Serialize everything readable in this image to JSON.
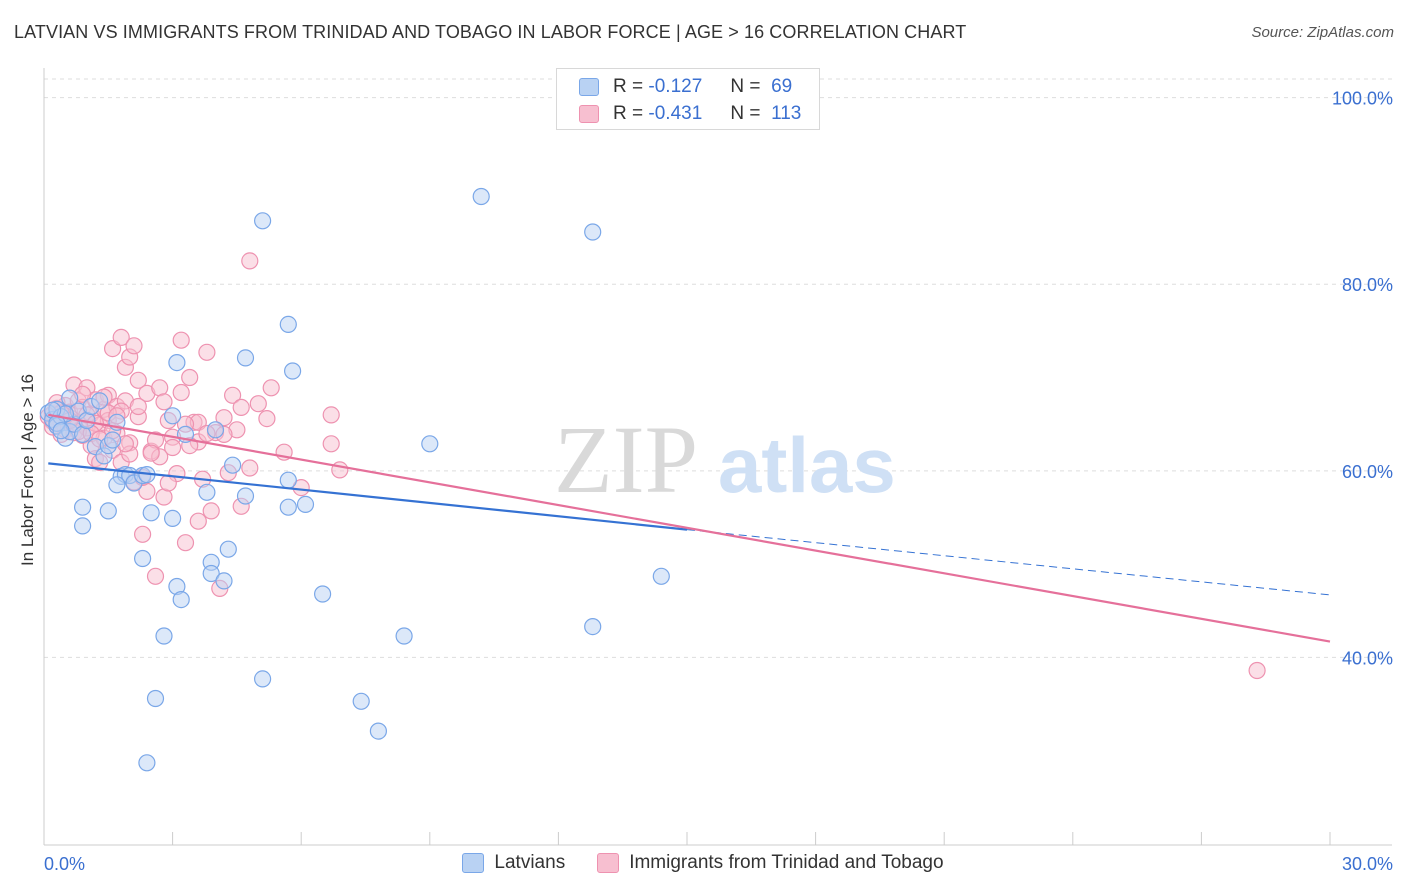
{
  "header": {
    "title": "LATVIAN VS IMMIGRANTS FROM TRINIDAD AND TOBAGO IN LABOR FORCE | AGE > 16 CORRELATION CHART",
    "source": "Source: ZipAtlas.com"
  },
  "legend": {
    "series1": {
      "r_label": "R =",
      "r_value": "-0.127",
      "n_label": "N =",
      "n_value": "69"
    },
    "series2": {
      "r_label": "R =",
      "r_value": "-0.431",
      "n_label": "N =",
      "n_value": "113"
    }
  },
  "watermark": {
    "zip": "ZIP",
    "atlas": "atlas"
  },
  "colors": {
    "blue_fill": "#b9d2f3",
    "blue_stroke": "#7aa7e8",
    "blue_line": "#3572d3",
    "pink_fill": "#f7bfd0",
    "pink_stroke": "#ee92b0",
    "pink_line": "#e5709a",
    "axis_text": "#3a6fd0",
    "grid": "#dddddd"
  },
  "chart_data": {
    "type": "scatter",
    "title": "LATVIAN VS IMMIGRANTS FROM TRINIDAD AND TOBAGO IN LABOR FORCE | AGE > 16 CORRELATION CHART",
    "xlabel": "",
    "ylabel": "In Labor Force | Age > 16",
    "xlim": [
      0,
      30
    ],
    "ylim": [
      20,
      102
    ],
    "x_tick_labels": [
      "0.0%",
      "30.0%"
    ],
    "y_ticks": [
      40,
      60,
      80,
      100
    ],
    "y_tick_labels": [
      "40.0%",
      "60.0%",
      "80.0%",
      "100.0%"
    ],
    "grid": true,
    "legend_position": "bottom",
    "series": [
      {
        "name": "Latvians",
        "color": "#b9d2f3",
        "r": -0.127,
        "n": 69,
        "trend": {
          "x0": 0.1,
          "y0": 60.8,
          "x1": 15.0,
          "y1": 53.7,
          "dash_x1": 30.0,
          "dash_y1": 46.7
        },
        "points": [
          [
            0.1,
            66.2
          ],
          [
            0.2,
            65.5
          ],
          [
            0.3,
            66.6
          ],
          [
            0.3,
            64.8
          ],
          [
            0.4,
            65.8
          ],
          [
            0.5,
            63.5
          ],
          [
            0.6,
            64.2
          ],
          [
            0.7,
            65.0
          ],
          [
            0.8,
            66.4
          ],
          [
            0.9,
            63.9
          ],
          [
            1.0,
            65.4
          ],
          [
            1.1,
            66.9
          ],
          [
            1.2,
            62.6
          ],
          [
            1.3,
            67.5
          ],
          [
            1.4,
            61.6
          ],
          [
            1.5,
            62.7
          ],
          [
            1.6,
            63.3
          ],
          [
            1.7,
            65.2
          ],
          [
            1.8,
            59.4
          ],
          [
            1.9,
            59.6
          ],
          [
            2.0,
            59.5
          ],
          [
            2.1,
            58.7
          ],
          [
            2.3,
            59.5
          ],
          [
            2.4,
            59.6
          ],
          [
            0.9,
            56.1
          ],
          [
            1.5,
            55.7
          ],
          [
            0.9,
            54.1
          ],
          [
            2.5,
            55.5
          ],
          [
            3.0,
            54.9
          ],
          [
            3.0,
            65.9
          ],
          [
            3.1,
            71.6
          ],
          [
            3.3,
            63.9
          ],
          [
            3.8,
            57.7
          ],
          [
            3.9,
            50.2
          ],
          [
            3.9,
            49.0
          ],
          [
            4.0,
            64.4
          ],
          [
            4.3,
            51.6
          ],
          [
            4.2,
            48.2
          ],
          [
            4.4,
            60.6
          ],
          [
            4.7,
            57.3
          ],
          [
            4.7,
            72.1
          ],
          [
            5.1,
            86.8
          ],
          [
            5.7,
            56.1
          ],
          [
            5.7,
            59.0
          ],
          [
            5.7,
            75.7
          ],
          [
            5.8,
            70.7
          ],
          [
            6.1,
            56.4
          ],
          [
            6.5,
            46.8
          ],
          [
            7.4,
            35.3
          ],
          [
            7.8,
            32.1
          ],
          [
            8.4,
            42.3
          ],
          [
            9.0,
            62.9
          ],
          [
            10.2,
            89.4
          ],
          [
            12.8,
            43.3
          ],
          [
            12.8,
            85.6
          ],
          [
            14.4,
            48.7
          ],
          [
            2.3,
            50.6
          ],
          [
            3.1,
            47.6
          ],
          [
            3.2,
            46.2
          ],
          [
            2.8,
            42.3
          ],
          [
            2.6,
            35.6
          ],
          [
            2.4,
            28.7
          ],
          [
            5.1,
            37.7
          ],
          [
            1.7,
            58.5
          ],
          [
            0.5,
            66.1
          ],
          [
            0.2,
            66.5
          ],
          [
            0.3,
            65.1
          ],
          [
            0.6,
            67.8
          ],
          [
            0.4,
            64.3
          ]
        ]
      },
      {
        "name": "Immigrants from Trinidad and Tobago",
        "color": "#f7bfd0",
        "r": -0.431,
        "n": 113,
        "trend": {
          "x0": 0.1,
          "y0": 66.0,
          "x1": 30.0,
          "y1": 41.7
        },
        "points": [
          [
            0.1,
            65.8
          ],
          [
            0.2,
            66.1
          ],
          [
            0.2,
            65.3
          ],
          [
            0.3,
            64.8
          ],
          [
            0.3,
            66.7
          ],
          [
            0.4,
            65.2
          ],
          [
            0.4,
            63.9
          ],
          [
            0.5,
            64.4
          ],
          [
            0.5,
            67.0
          ],
          [
            0.6,
            65.7
          ],
          [
            0.6,
            66.3
          ],
          [
            0.7,
            64.1
          ],
          [
            0.7,
            69.2
          ],
          [
            0.8,
            67.5
          ],
          [
            0.8,
            65.0
          ],
          [
            0.9,
            63.8
          ],
          [
            0.9,
            66.8
          ],
          [
            1.0,
            64.6
          ],
          [
            1.0,
            68.9
          ],
          [
            1.1,
            62.7
          ],
          [
            1.1,
            66.1
          ],
          [
            1.2,
            61.3
          ],
          [
            1.2,
            67.6
          ],
          [
            1.3,
            64.9
          ],
          [
            1.3,
            60.9
          ],
          [
            1.4,
            66.6
          ],
          [
            1.4,
            63.5
          ],
          [
            1.5,
            68.1
          ],
          [
            1.5,
            65.4
          ],
          [
            1.6,
            73.1
          ],
          [
            1.6,
            62.2
          ],
          [
            1.7,
            66.9
          ],
          [
            1.7,
            64.0
          ],
          [
            1.8,
            74.3
          ],
          [
            1.8,
            60.9
          ],
          [
            1.9,
            71.1
          ],
          [
            1.9,
            67.5
          ],
          [
            2.0,
            72.2
          ],
          [
            2.0,
            63.0
          ],
          [
            2.1,
            73.4
          ],
          [
            2.1,
            58.8
          ],
          [
            2.2,
            69.7
          ],
          [
            2.2,
            65.8
          ],
          [
            2.3,
            53.2
          ],
          [
            2.4,
            68.3
          ],
          [
            2.5,
            62.1
          ],
          [
            2.6,
            48.7
          ],
          [
            2.7,
            61.5
          ],
          [
            2.7,
            68.9
          ],
          [
            2.8,
            57.2
          ],
          [
            2.9,
            65.4
          ],
          [
            3.0,
            63.6
          ],
          [
            3.1,
            59.7
          ],
          [
            3.2,
            74.0
          ],
          [
            3.2,
            68.4
          ],
          [
            3.3,
            52.3
          ],
          [
            3.4,
            70.0
          ],
          [
            3.5,
            65.2
          ],
          [
            3.6,
            54.6
          ],
          [
            3.6,
            63.1
          ],
          [
            3.7,
            59.1
          ],
          [
            3.8,
            72.7
          ],
          [
            3.9,
            55.7
          ],
          [
            4.0,
            64.1
          ],
          [
            4.1,
            47.4
          ],
          [
            4.2,
            65.7
          ],
          [
            4.3,
            59.8
          ],
          [
            4.4,
            68.1
          ],
          [
            4.5,
            64.4
          ],
          [
            4.6,
            56.2
          ],
          [
            4.8,
            60.3
          ],
          [
            4.8,
            82.5
          ],
          [
            5.0,
            67.2
          ],
          [
            5.2,
            65.6
          ],
          [
            5.3,
            68.9
          ],
          [
            5.6,
            62.0
          ],
          [
            6.0,
            58.2
          ],
          [
            6.7,
            66.0
          ],
          [
            6.7,
            62.9
          ],
          [
            6.9,
            60.1
          ],
          [
            28.3,
            38.6
          ],
          [
            0.3,
            67.3
          ],
          [
            0.5,
            65.9
          ],
          [
            0.8,
            64.2
          ],
          [
            1.0,
            66.0
          ],
          [
            1.2,
            65.1
          ],
          [
            1.4,
            67.9
          ],
          [
            1.6,
            64.3
          ],
          [
            1.8,
            66.4
          ],
          [
            2.0,
            61.8
          ],
          [
            2.2,
            66.9
          ],
          [
            2.4,
            57.8
          ],
          [
            2.6,
            63.3
          ],
          [
            2.8,
            67.4
          ],
          [
            3.0,
            62.5
          ],
          [
            3.4,
            62.7
          ],
          [
            3.6,
            65.2
          ],
          [
            3.8,
            64.0
          ],
          [
            4.2,
            63.9
          ],
          [
            4.6,
            66.8
          ],
          [
            0.2,
            64.7
          ],
          [
            0.4,
            66.2
          ],
          [
            0.6,
            65.4
          ],
          [
            0.9,
            68.2
          ],
          [
            1.1,
            64.0
          ],
          [
            1.3,
            63.4
          ],
          [
            1.5,
            66.2
          ],
          [
            1.7,
            65.9
          ],
          [
            1.9,
            62.9
          ],
          [
            2.3,
            59.3
          ],
          [
            2.5,
            61.9
          ],
          [
            2.9,
            58.7
          ],
          [
            3.3,
            65.0
          ]
        ]
      }
    ]
  }
}
